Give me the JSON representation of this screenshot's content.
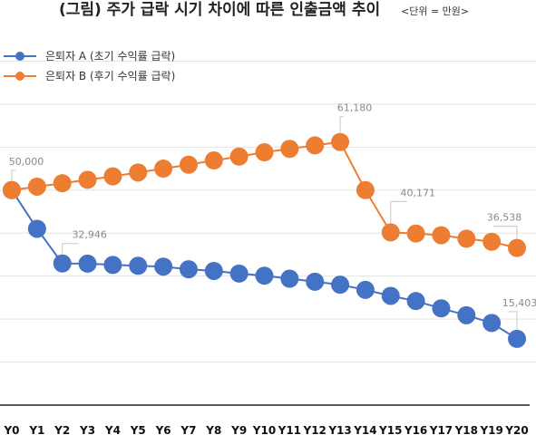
{
  "chart_data": {
    "type": "line",
    "title": "(그림) 주가 급락 시기 차이에 따른 인출금액 추이",
    "unit_note": "<단위 = 만원>",
    "categories": [
      "Y0",
      "Y1",
      "Y2",
      "Y3",
      "Y4",
      "Y5",
      "Y6",
      "Y7",
      "Y8",
      "Y9",
      "Y10",
      "Y11",
      "Y12",
      "Y13",
      "Y14",
      "Y15",
      "Y16",
      "Y17",
      "Y18",
      "Y19",
      "Y20"
    ],
    "ylim": [
      0,
      90000
    ],
    "grid": true,
    "legend_position": "top-left",
    "series": [
      {
        "name": "은퇴자 A (초기 수익률 급락)",
        "color": "#4472C4",
        "values": [
          50000,
          41000,
          32946,
          32900,
          32600,
          32400,
          32200,
          31600,
          31200,
          30600,
          30100,
          29400,
          28700,
          28000,
          26800,
          25400,
          24200,
          22500,
          20900,
          19100,
          15403
        ]
      },
      {
        "name": "은퇴자 B (후기 수익률 급락)",
        "color": "#ED7D31",
        "values": [
          50000,
          50800,
          51600,
          52400,
          53200,
          54100,
          55000,
          55900,
          56900,
          57800,
          58800,
          59600,
          60400,
          61180,
          50000,
          40171,
          39900,
          39500,
          38700,
          38000,
          36538
        ]
      }
    ],
    "annotations": [
      {
        "series": 0,
        "index": 0,
        "text": "50,000"
      },
      {
        "series": 0,
        "index": 2,
        "text": "32,946"
      },
      {
        "series": 0,
        "index": 20,
        "text": "15,403"
      },
      {
        "series": 1,
        "index": 13,
        "text": "61,180"
      },
      {
        "series": 1,
        "index": 15,
        "text": "40,171"
      },
      {
        "series": 1,
        "index": 20,
        "text": "36,538"
      }
    ]
  }
}
